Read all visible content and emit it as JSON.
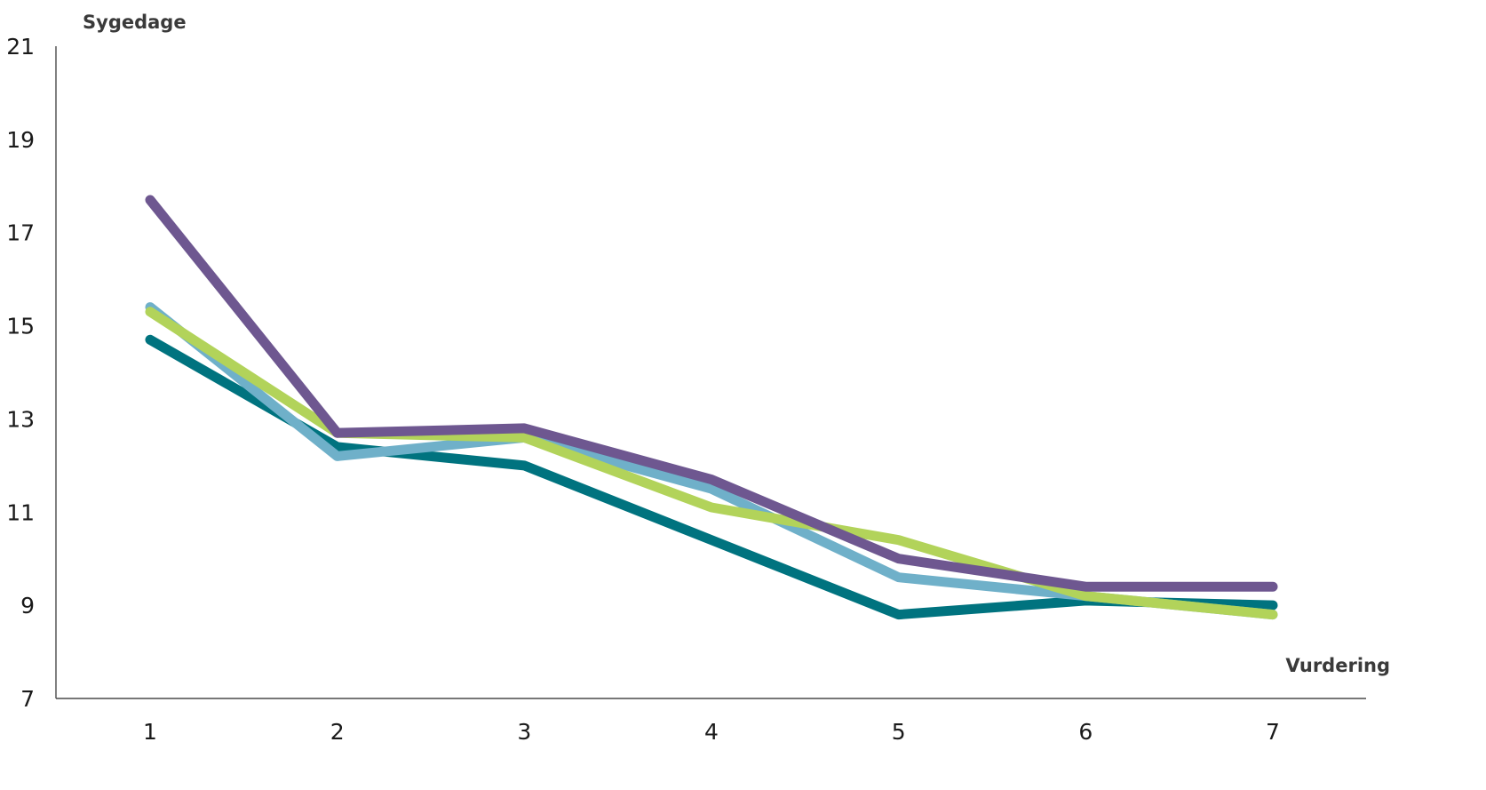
{
  "chart_data": {
    "type": "line",
    "title": "",
    "xlabel": "Vurdering",
    "ylabel": "Sygedage",
    "x": [
      1,
      2,
      3,
      4,
      5,
      6,
      7
    ],
    "x_ticks": [
      "1",
      "2",
      "3",
      "4",
      "5",
      "6",
      "7"
    ],
    "ylim": [
      7,
      21
    ],
    "y_ticks": [
      "7",
      "9",
      "11",
      "13",
      "15",
      "17",
      "19",
      "21"
    ],
    "grid": false,
    "legend": "none",
    "series": [
      {
        "color": "#00737f",
        "values": [
          14.7,
          12.4,
          12.0,
          10.4,
          8.8,
          9.1,
          9.0
        ]
      },
      {
        "color": "#6fb0c9",
        "values": [
          15.4,
          12.2,
          12.6,
          11.5,
          9.6,
          9.2,
          8.8
        ]
      },
      {
        "color": "#b2d35a",
        "values": [
          15.3,
          12.7,
          12.6,
          11.1,
          10.4,
          9.2,
          8.8
        ]
      },
      {
        "color": "#6e5790",
        "values": [
          17.7,
          12.7,
          12.8,
          11.7,
          10.0,
          9.4,
          9.4
        ]
      }
    ]
  }
}
